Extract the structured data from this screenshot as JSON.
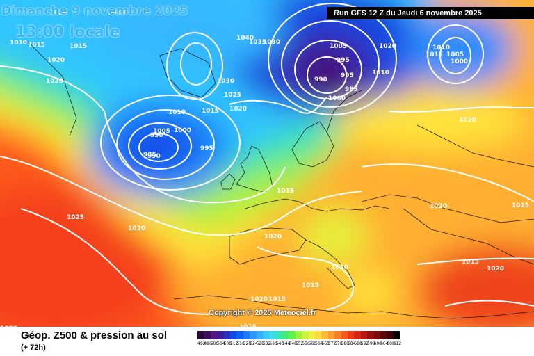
{
  "header": {
    "date": "Dimanche 9 novembre 2025",
    "time": "13:00 locale",
    "run": "Run GFS 12 Z du Jeudi 6 novembre 2025"
  },
  "copyright": "Copyright © 2025 Meteociel.fr",
  "legend": {
    "title": "Géop. Z500 & pression au sol",
    "lead": "(+ 72h)",
    "scale_values": [
      "492",
      "496",
      "500",
      "504",
      "508",
      "512",
      "516",
      "520",
      "524",
      "528",
      "532",
      "536",
      "540",
      "544",
      "548",
      "552",
      "556",
      "560",
      "564",
      "568",
      "572",
      "576",
      "580",
      "584",
      "588",
      "592",
      "596",
      "600",
      "604",
      "608",
      "612"
    ],
    "scale_colors": [
      "#2a0a3a",
      "#3c0f5a",
      "#511a7c",
      "#3a1d9c",
      "#2431c4",
      "#1448e4",
      "#0f62f6",
      "#1b7cff",
      "#2d96ff",
      "#35b0ff",
      "#3cc8ff",
      "#39dde6",
      "#35e8b2",
      "#41ec78",
      "#67f04a",
      "#9cf238",
      "#ccf23a",
      "#f2ee3c",
      "#ffd83a",
      "#ffbb35",
      "#ff9d2e",
      "#ff7e27",
      "#f7591f",
      "#ea3a19",
      "#d82414",
      "#bb1512",
      "#9b0e10",
      "#7a0a0d",
      "#5a060a",
      "#3a0306",
      "#000000"
    ]
  },
  "isobar_labels": [
    {
      "t": "1020"
    },
    {
      "t": "1010"
    },
    {
      "t": "1015"
    },
    {
      "t": "1020"
    },
    {
      "t": "1020"
    },
    {
      "t": "1015"
    },
    {
      "t": "1040"
    },
    {
      "t": "1040"
    },
    {
      "t": "1035"
    },
    {
      "t": "1030"
    },
    {
      "t": "1030"
    },
    {
      "t": "1025"
    },
    {
      "t": "1020"
    },
    {
      "t": "1015"
    },
    {
      "t": "1010"
    },
    {
      "t": "1005"
    },
    {
      "t": "995"
    },
    {
      "t": "990"
    },
    {
      "t": "1000"
    },
    {
      "t": "995"
    },
    {
      "t": "985"
    },
    {
      "t": "1005"
    },
    {
      "t": "995"
    },
    {
      "t": "990"
    },
    {
      "t": "990"
    },
    {
      "t": "985"
    },
    {
      "t": "1000"
    },
    {
      "t": "1010"
    },
    {
      "t": "1020"
    },
    {
      "t": "1010"
    },
    {
      "t": "1015"
    },
    {
      "t": "1005"
    },
    {
      "t": "1000"
    },
    {
      "t": "1020"
    },
    {
      "t": "1015"
    },
    {
      "t": "1020"
    },
    {
      "t": "1015"
    },
    {
      "t": "1025"
    },
    {
      "t": "1020"
    },
    {
      "t": "1020"
    },
    {
      "t": "1010"
    },
    {
      "t": "1015"
    },
    {
      "t": "1020"
    },
    {
      "t": "1020"
    },
    {
      "t": "1015"
    },
    {
      "t": "1015"
    },
    {
      "t": "1015"
    },
    {
      "t": "1020"
    },
    {
      "t": "1010"
    },
    {
      "t": "1010"
    }
  ]
}
